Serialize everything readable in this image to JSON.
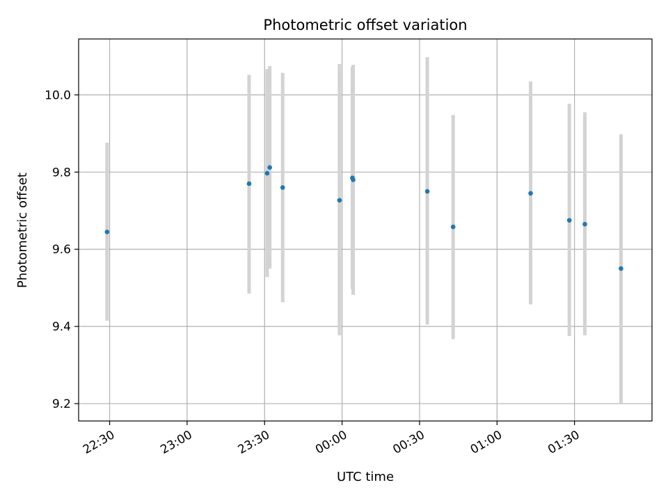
{
  "chart_data": {
    "type": "scatter",
    "title": "Photometric offset variation",
    "xlabel": "UTC time",
    "ylabel": "Photometric offset",
    "x_axis": {
      "ticks": [
        {
          "t": 0,
          "label": "22:30"
        },
        {
          "t": 30,
          "label": "23:00"
        },
        {
          "t": 60,
          "label": "23:30"
        },
        {
          "t": 90,
          "label": "00:00"
        },
        {
          "t": 120,
          "label": "00:30"
        },
        {
          "t": 150,
          "label": "01:00"
        },
        {
          "t": 180,
          "label": "01:30"
        }
      ],
      "range": [
        "22:18",
        "02:00"
      ]
    },
    "y_axis": {
      "ticks": [
        9.2,
        9.4,
        9.6,
        9.8,
        10.0
      ],
      "tick_labels": [
        "9.2",
        "9.4",
        "9.6",
        "9.8",
        "10.0"
      ],
      "ylim": [
        9.155,
        10.145
      ]
    },
    "grid": true,
    "point_color": "#1f77b4",
    "errorbar_color": "#d3d3d3",
    "points": [
      {
        "time": "22:29",
        "y": 9.645,
        "ylow": 9.415,
        "yhigh": 9.876
      },
      {
        "time": "23:24",
        "y": 9.77,
        "ylow": 9.485,
        "yhigh": 10.052
      },
      {
        "time": "23:31",
        "y": 9.797,
        "ylow": 9.528,
        "yhigh": 10.067
      },
      {
        "time": "23:32",
        "y": 9.812,
        "ylow": 9.55,
        "yhigh": 10.075
      },
      {
        "time": "23:37",
        "y": 9.76,
        "ylow": 9.463,
        "yhigh": 10.057
      },
      {
        "time": "23:59",
        "y": 9.727,
        "ylow": 9.377,
        "yhigh": 10.08
      },
      {
        "time": "00:04",
        "y": 9.785,
        "ylow": 9.497,
        "yhigh": 10.072
      },
      {
        "time": "00:04",
        "y": 9.78,
        "ylow": 9.482,
        "yhigh": 10.078
      },
      {
        "time": "00:33",
        "y": 9.75,
        "ylow": 9.405,
        "yhigh": 10.098
      },
      {
        "time": "00:43",
        "y": 9.658,
        "ylow": 9.367,
        "yhigh": 9.948
      },
      {
        "time": "01:13",
        "y": 9.745,
        "ylow": 9.457,
        "yhigh": 10.035
      },
      {
        "time": "01:28",
        "y": 9.675,
        "ylow": 9.375,
        "yhigh": 9.977
      },
      {
        "time": "01:34",
        "y": 9.665,
        "ylow": 9.377,
        "yhigh": 9.955
      },
      {
        "time": "01:48",
        "y": 9.55,
        "ylow": 9.2,
        "yhigh": 9.898
      }
    ]
  }
}
